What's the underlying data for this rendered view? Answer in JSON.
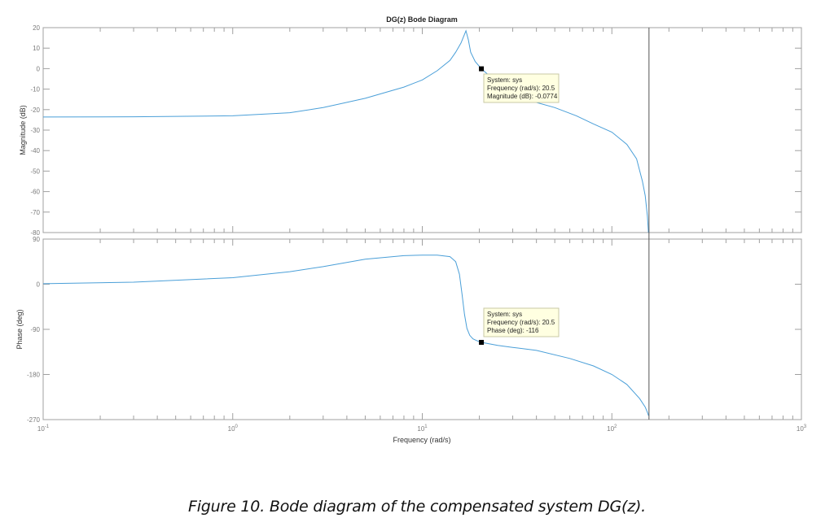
{
  "figure": {
    "title": "DG(z) Bode Diagram",
    "xlabel": "Frequency  (rad/s)",
    "caption": "Figure 10. Bode diagram of the compensated system DG(z)."
  },
  "colors": {
    "line": "#4a9fd8",
    "axes": "#a0a0a0",
    "nyquist_line": "#555555",
    "datatip_bg": "#ffffe1",
    "datatip_border": "#c9c9a6",
    "marker": "#000000"
  },
  "datatips": {
    "magnitude": {
      "line1": "System: sys",
      "line2": "Frequency (rad/s): 20.5",
      "line3": "Magnitude (dB): -0.0774"
    },
    "phase": {
      "line1": "System: sys",
      "line2": "Frequency (rad/s): 20.5",
      "line3": "Phase (deg): -116"
    }
  },
  "chart_data": [
    {
      "type": "line",
      "title": "DG(z) Bode Diagram",
      "panel": "magnitude",
      "xlabel": "Frequency  (rad/s)",
      "ylabel": "Magnitude (dB)",
      "xscale": "log",
      "xlim": [
        0.1,
        1000
      ],
      "ylim": [
        -80,
        20
      ],
      "xticks": [
        "10^-1",
        "10^0",
        "10^1",
        "10^2",
        "10^3"
      ],
      "yticks": [
        20,
        10,
        0,
        -10,
        -20,
        -30,
        -40,
        -50,
        -60,
        -70,
        -80
      ],
      "grid": false,
      "series": [
        {
          "name": "sys",
          "x": [
            0.1,
            0.3,
            1,
            2,
            3,
            5,
            8,
            10,
            12,
            14,
            15,
            16,
            17,
            17.5,
            18,
            19,
            20.5,
            25,
            30,
            40,
            50,
            65,
            80,
            100,
            120,
            135,
            145,
            150,
            154,
            156
          ],
          "y": [
            -23.6,
            -23.5,
            -23,
            -21.5,
            -19,
            -14.5,
            -9,
            -5.5,
            -1,
            4,
            8,
            12.5,
            18.5,
            14,
            8,
            3.5,
            -0.08,
            -7,
            -12,
            -16.5,
            -19,
            -23,
            -27,
            -31,
            -37,
            -44,
            -55,
            -62,
            -72,
            -80
          ]
        }
      ],
      "annotations": [
        {
          "type": "datatip",
          "x": 20.5,
          "y": -0.0774,
          "text": [
            "System: sys",
            "Frequency (rad/s): 20.5",
            "Magnitude (dB): -0.0774"
          ]
        },
        {
          "type": "vline",
          "x": 157,
          "note": "Nyquist frequency"
        }
      ]
    },
    {
      "type": "line",
      "panel": "phase",
      "xlabel": "Frequency  (rad/s)",
      "ylabel": "Phase (deg)",
      "xscale": "log",
      "xlim": [
        0.1,
        1000
      ],
      "ylim": [
        -270,
        90
      ],
      "xticks": [
        "10^-1",
        "10^0",
        "10^1",
        "10^2",
        "10^3"
      ],
      "yticks": [
        90,
        0,
        -90,
        -180,
        -270
      ],
      "grid": false,
      "series": [
        {
          "name": "sys",
          "x": [
            0.1,
            0.3,
            1,
            2,
            3,
            5,
            8,
            10,
            12,
            14,
            15,
            15.7,
            16.2,
            16.7,
            17.2,
            17.8,
            18.5,
            19.5,
            20.5,
            25,
            30,
            40,
            60,
            80,
            100,
            120,
            140,
            150,
            155,
            156
          ],
          "y": [
            1,
            4,
            13,
            25,
            35,
            50,
            57,
            58,
            58,
            55,
            45,
            20,
            -20,
            -60,
            -88,
            -102,
            -109,
            -113,
            -116,
            -122,
            -126,
            -132,
            -148,
            -163,
            -180,
            -200,
            -228,
            -245,
            -258,
            -262
          ]
        }
      ],
      "annotations": [
        {
          "type": "datatip",
          "x": 20.5,
          "y": -116,
          "text": [
            "System: sys",
            "Frequency (rad/s): 20.5",
            "Phase (deg): -116"
          ]
        },
        {
          "type": "vline",
          "x": 157,
          "note": "Nyquist frequency"
        }
      ]
    }
  ]
}
